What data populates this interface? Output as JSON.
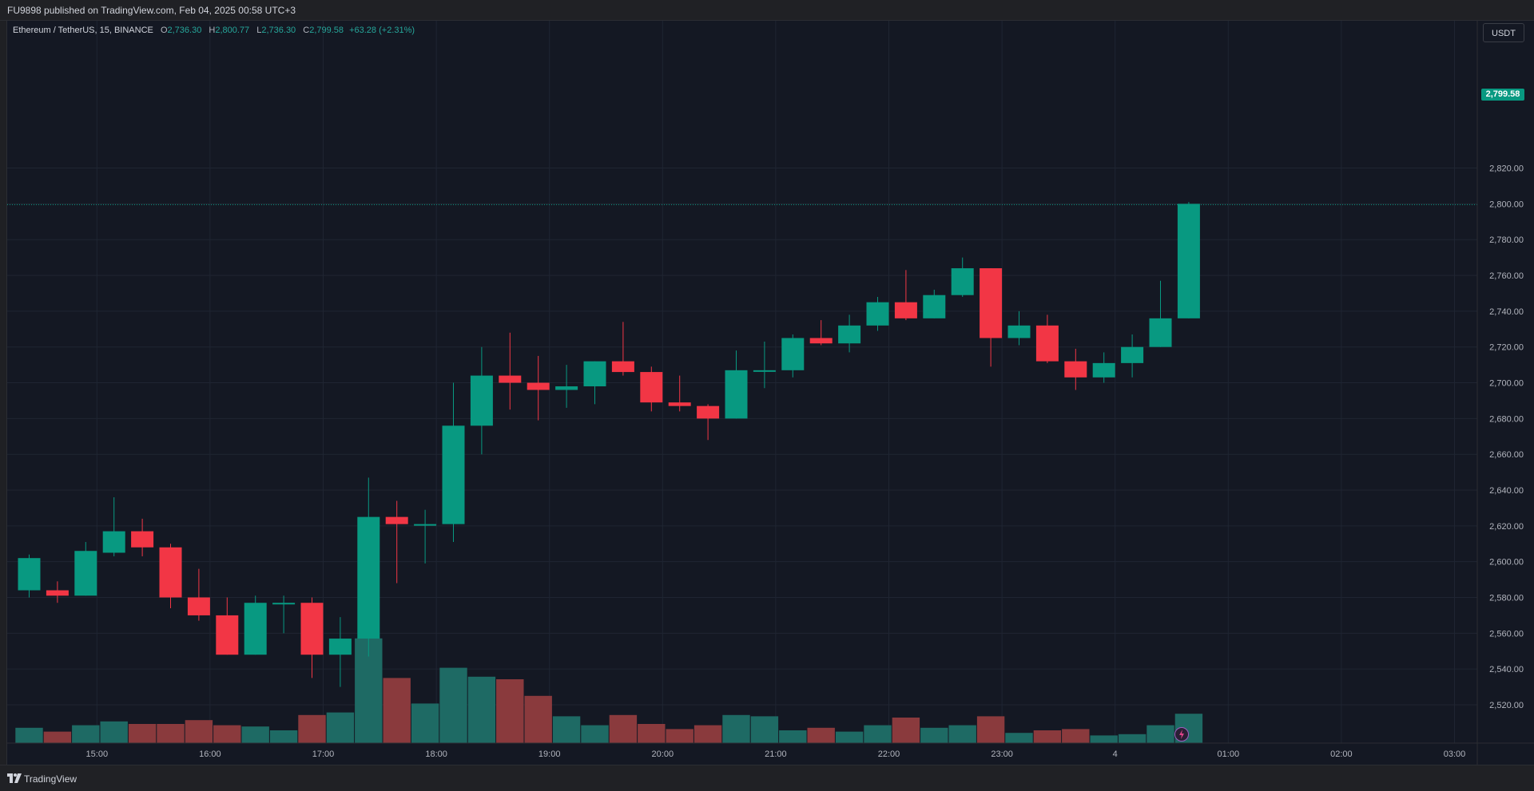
{
  "header": {
    "publish_text": "FU9898 published on TradingView.com, Feb 04, 2025 00:58 UTC+3"
  },
  "legend": {
    "symbol": "Ethereum / TetherUS, 15, BINANCE",
    "o_label": "O",
    "o_value": "2,736.30",
    "h_label": "H",
    "h_value": "2,800.77",
    "l_label": "L",
    "l_value": "2,736.30",
    "c_label": "C",
    "c_value": "2,799.58",
    "change": "+63.28 (+2.31%)"
  },
  "toolbar": {
    "currency_button": "USDT"
  },
  "last_price_label": "2,799.58",
  "footer": {
    "brand": "TradingView"
  },
  "colors": {
    "up": "#089981",
    "down": "#f23645",
    "background": "#141823",
    "grid": "#1f2532",
    "text": "#b2b5be"
  },
  "chart_data": {
    "type": "candlestick",
    "symbol": "Ethereum / TetherUS",
    "interval": "15",
    "exchange": "BINANCE",
    "y_ticks": [
      2520,
      2540,
      2560,
      2580,
      2600,
      2620,
      2640,
      2660,
      2680,
      2700,
      2720,
      2740,
      2760,
      2780,
      2800,
      2820
    ],
    "y_tick_labels": [
      "2,520.00",
      "2,540.00",
      "2,560.00",
      "2,580.00",
      "2,600.00",
      "2,620.00",
      "2,640.00",
      "2,660.00",
      "2,680.00",
      "2,700.00",
      "2,720.00",
      "2,740.00",
      "2,760.00",
      "2,780.00",
      "2,800.00",
      "2,820.00"
    ],
    "x_ticks": [
      {
        "index": 2.0,
        "label": "15:00"
      },
      {
        "index": 6.0,
        "label": "16:00"
      },
      {
        "index": 10.0,
        "label": "17:00"
      },
      {
        "index": 14.0,
        "label": "18:00"
      },
      {
        "index": 18.0,
        "label": "19:00"
      },
      {
        "index": 22.0,
        "label": "20:00"
      },
      {
        "index": 26.0,
        "label": "21:00"
      },
      {
        "index": 30.0,
        "label": "22:00"
      },
      {
        "index": 34.0,
        "label": "23:00"
      },
      {
        "index": 38.0,
        "label": "4"
      },
      {
        "index": 42.0,
        "label": "01:00"
      },
      {
        "index": 46.0,
        "label": "02:00"
      },
      {
        "index": 50.0,
        "label": "03:00"
      }
    ],
    "last_price": 2799.58,
    "candles": [
      {
        "o": 2584,
        "h": 2604,
        "l": 2580,
        "c": 2602
      },
      {
        "o": 2584,
        "h": 2589,
        "l": 2577,
        "c": 2581
      },
      {
        "o": 2581,
        "h": 2611,
        "l": 2581,
        "c": 2606
      },
      {
        "o": 2605,
        "h": 2636,
        "l": 2603,
        "c": 2617
      },
      {
        "o": 2617,
        "h": 2624,
        "l": 2603,
        "c": 2608
      },
      {
        "o": 2608,
        "h": 2610,
        "l": 2574,
        "c": 2580
      },
      {
        "o": 2580,
        "h": 2596,
        "l": 2567,
        "c": 2570
      },
      {
        "o": 2570,
        "h": 2580,
        "l": 2548,
        "c": 2548
      },
      {
        "o": 2548,
        "h": 2581,
        "l": 2548,
        "c": 2577
      },
      {
        "o": 2577,
        "h": 2581,
        "l": 2560,
        "c": 2577
      },
      {
        "o": 2577,
        "h": 2580,
        "l": 2535,
        "c": 2548
      },
      {
        "o": 2548,
        "h": 2569,
        "l": 2530,
        "c": 2557
      },
      {
        "o": 2557,
        "h": 2647,
        "l": 2547,
        "c": 2625
      },
      {
        "o": 2625,
        "h": 2634,
        "l": 2588,
        "c": 2621
      },
      {
        "o": 2621,
        "h": 2629,
        "l": 2599,
        "c": 2621
      },
      {
        "o": 2621,
        "h": 2700,
        "l": 2611,
        "c": 2676
      },
      {
        "o": 2676,
        "h": 2720,
        "l": 2660,
        "c": 2704
      },
      {
        "o": 2704,
        "h": 2728,
        "l": 2685,
        "c": 2700
      },
      {
        "o": 2700,
        "h": 2715,
        "l": 2679,
        "c": 2696
      },
      {
        "o": 2696,
        "h": 2710,
        "l": 2686,
        "c": 2698
      },
      {
        "o": 2698,
        "h": 2712,
        "l": 2688,
        "c": 2712
      },
      {
        "o": 2712,
        "h": 2734,
        "l": 2704,
        "c": 2706
      },
      {
        "o": 2706,
        "h": 2709,
        "l": 2684,
        "c": 2689
      },
      {
        "o": 2689,
        "h": 2704,
        "l": 2684,
        "c": 2687
      },
      {
        "o": 2687,
        "h": 2688,
        "l": 2668,
        "c": 2680
      },
      {
        "o": 2680,
        "h": 2718,
        "l": 2680,
        "c": 2707
      },
      {
        "o": 2707,
        "h": 2723,
        "l": 2697,
        "c": 2707
      },
      {
        "o": 2707,
        "h": 2727,
        "l": 2703,
        "c": 2725
      },
      {
        "o": 2725,
        "h": 2735,
        "l": 2721,
        "c": 2722
      },
      {
        "o": 2722,
        "h": 2738,
        "l": 2717,
        "c": 2732
      },
      {
        "o": 2732,
        "h": 2748,
        "l": 2729,
        "c": 2745
      },
      {
        "o": 2745,
        "h": 2763,
        "l": 2735,
        "c": 2736
      },
      {
        "o": 2736,
        "h": 2752,
        "l": 2736,
        "c": 2749
      },
      {
        "o": 2749,
        "h": 2770,
        "l": 2748,
        "c": 2764
      },
      {
        "o": 2764,
        "h": 2764,
        "l": 2709,
        "c": 2725
      },
      {
        "o": 2725,
        "h": 2740,
        "l": 2721,
        "c": 2732
      },
      {
        "o": 2732,
        "h": 2738,
        "l": 2711,
        "c": 2712
      },
      {
        "o": 2712,
        "h": 2719,
        "l": 2696,
        "c": 2703
      },
      {
        "o": 2703,
        "h": 2717,
        "l": 2700,
        "c": 2711
      },
      {
        "o": 2711,
        "h": 2727,
        "l": 2703,
        "c": 2720
      },
      {
        "o": 2720,
        "h": 2757,
        "l": 2720,
        "c": 2736
      },
      {
        "o": 2736,
        "h": 2801,
        "l": 2736,
        "c": 2800
      }
    ],
    "volumes": [
      12,
      9,
      14,
      17,
      15,
      15,
      18,
      14,
      13,
      10,
      22,
      24,
      82,
      51,
      31,
      59,
      52,
      50,
      37,
      21,
      14,
      22,
      15,
      11,
      14,
      22,
      21,
      10,
      12,
      9,
      14,
      20,
      12,
      14,
      21,
      8,
      10,
      11,
      6,
      7,
      14,
      23
    ]
  }
}
